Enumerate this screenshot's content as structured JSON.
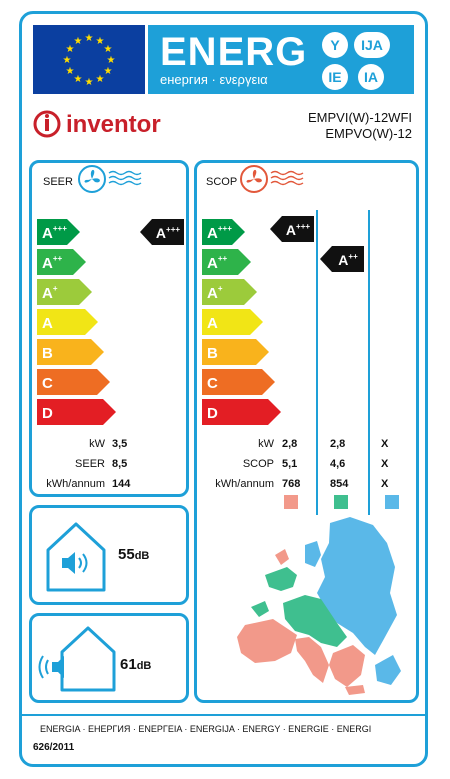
{
  "header": {
    "energy_word": "ENERG",
    "energy_sub": "енергия · ενεργεια",
    "suffixes": [
      "Y",
      "IJA",
      "IE",
      "IA"
    ],
    "brand": "inventor",
    "model_indoor": "EMPVI(W)-12WFI",
    "model_outdoor": "EMPVO(W)-12"
  },
  "colors": {
    "frame": "#1ea0d8",
    "eu_flag": "#0b3fa0",
    "star": "#ffdd00",
    "brand": "#c8202a",
    "zone_warmer": "#f2998a",
    "zone_average": "#3fbf8f",
    "zone_colder": "#5ab8e8",
    "class_colors": [
      "#009a47",
      "#2eb34a",
      "#9ccb3b",
      "#f1e516",
      "#f9b31c",
      "#ee6d23",
      "#e31e24"
    ]
  },
  "classes": [
    "A+++",
    "A++",
    "A+",
    "A",
    "B",
    "C",
    "D"
  ],
  "seer": {
    "title": "SEER",
    "icon": "fan-cooling-icon",
    "rating": "A+++",
    "rows": [
      {
        "label": "kW",
        "value": "3,5"
      },
      {
        "label": "SEER",
        "value": "8,5"
      },
      {
        "label": "kWh/annum",
        "value": "144"
      }
    ]
  },
  "scop": {
    "title": "SCOP",
    "icon": "fan-heating-icon",
    "ratings": [
      "A+++",
      "A++"
    ],
    "rows": [
      {
        "label": "kW",
        "values": [
          "2,8",
          "2,8",
          "X"
        ]
      },
      {
        "label": "SCOP",
        "values": [
          "5,1",
          "4,6",
          "X"
        ]
      },
      {
        "label": "kWh/annum",
        "values": [
          "768",
          "854",
          "X"
        ]
      }
    ]
  },
  "noise": {
    "indoor": {
      "value": "55",
      "unit": "dB",
      "icon": "indoor-noise-icon"
    },
    "outdoor": {
      "value": "61",
      "unit": "dB",
      "icon": "outdoor-noise-icon"
    }
  },
  "footer": {
    "languages": "ENERGIA · ЕНЕРГИЯ · ΕΝΕΡΓΕΙΑ · ENERGIJA · ENERGY · ENERGIE · ENERGI",
    "regulation": "626/2011"
  }
}
